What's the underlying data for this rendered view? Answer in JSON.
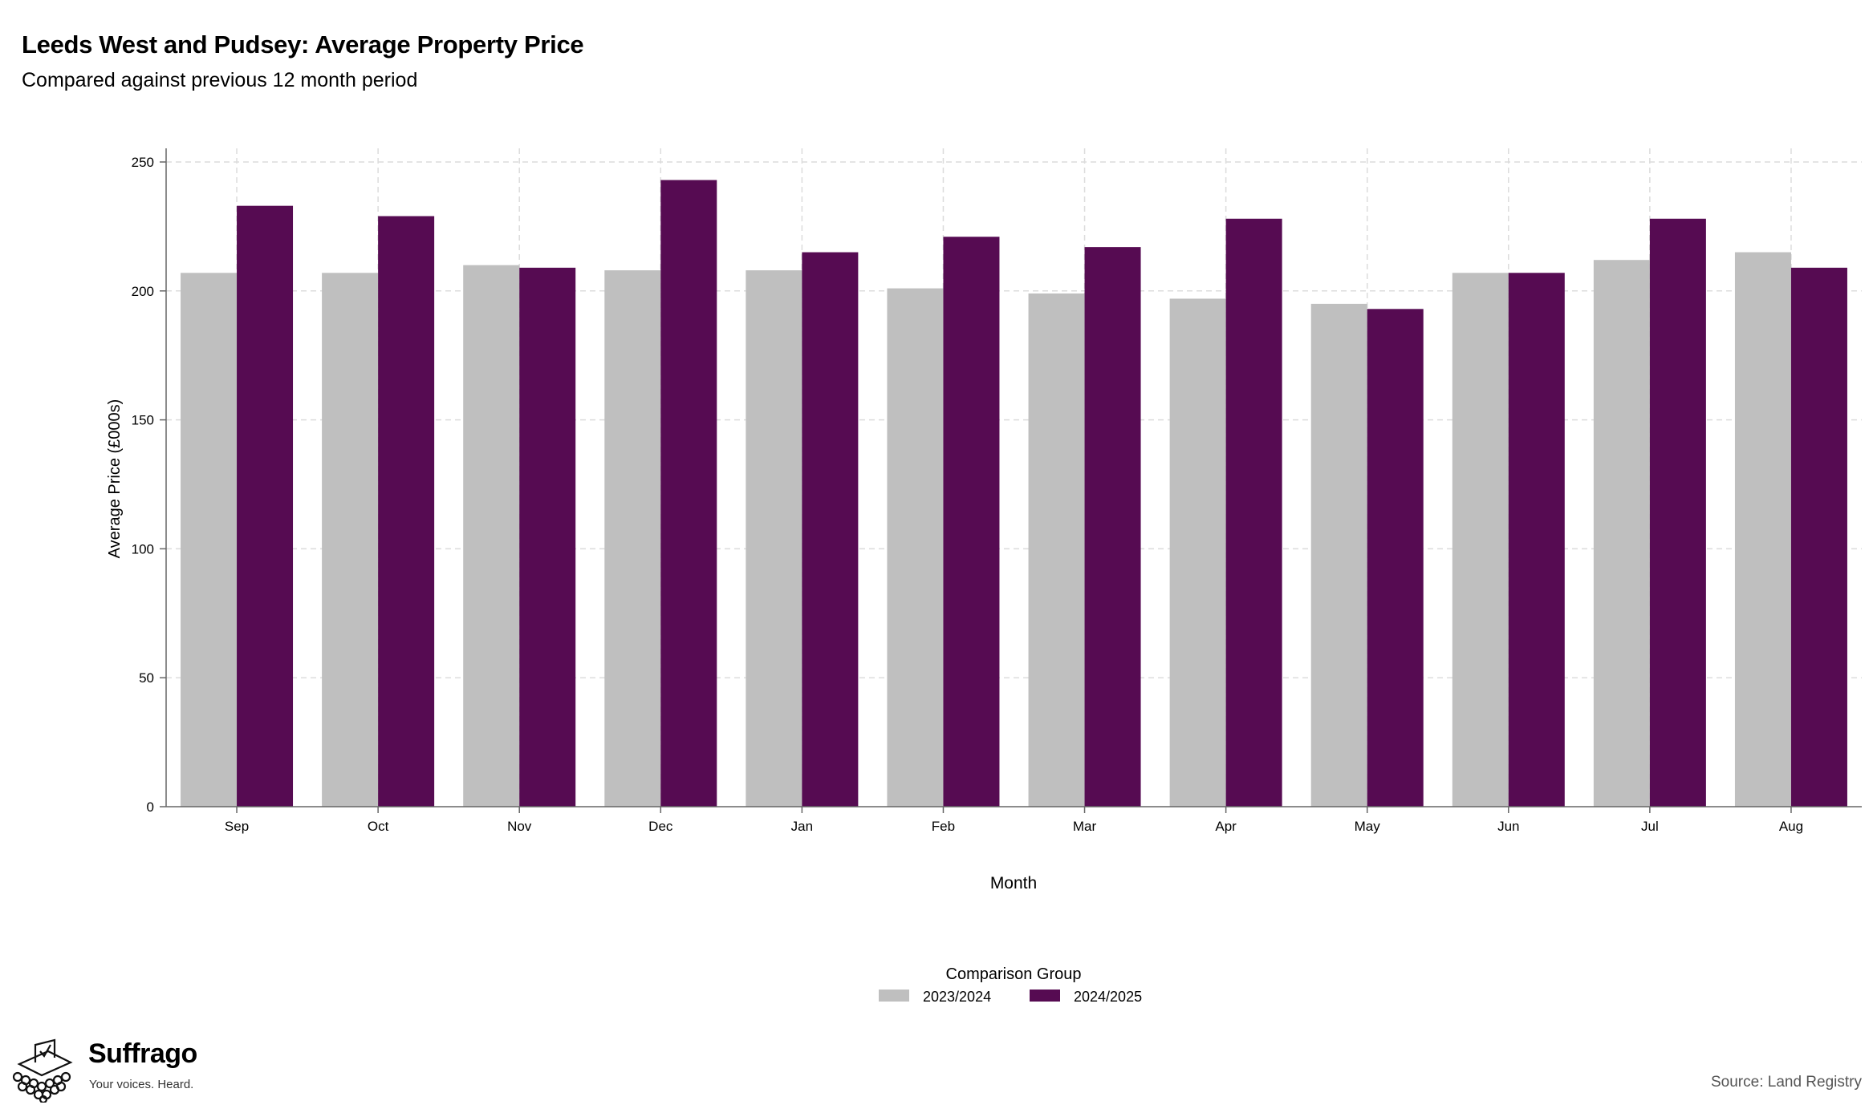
{
  "header": {
    "title": "Leeds West and Pudsey: Average Property Price",
    "subtitle": "Compared against previous 12 month period"
  },
  "footer": {
    "source": "Source: Land Registry",
    "brand": "Suffrago",
    "tagline": "Your voices. Heard."
  },
  "chart_data": {
    "type": "bar",
    "xlabel": "Month",
    "ylabel": "Average Price (£000s)",
    "ylim": [
      0,
      250
    ],
    "yticks": [
      0,
      50,
      100,
      150,
      200,
      250
    ],
    "grid": true,
    "categories": [
      "Sep",
      "Oct",
      "Nov",
      "Dec",
      "Jan",
      "Feb",
      "Mar",
      "Apr",
      "May",
      "Jun",
      "Jul",
      "Aug"
    ],
    "legend": {
      "title": "Comparison Group",
      "position": "bottom"
    },
    "series": [
      {
        "name": "2023/2024",
        "color": "#bfbfbf",
        "values": [
          207,
          207,
          210,
          208,
          208,
          201,
          199,
          197,
          195,
          207,
          212,
          215
        ]
      },
      {
        "name": "2024/2025",
        "color": "#560b52",
        "values": [
          233,
          229,
          209,
          243,
          215,
          221,
          217,
          228,
          193,
          207,
          228,
          209
        ]
      }
    ]
  }
}
